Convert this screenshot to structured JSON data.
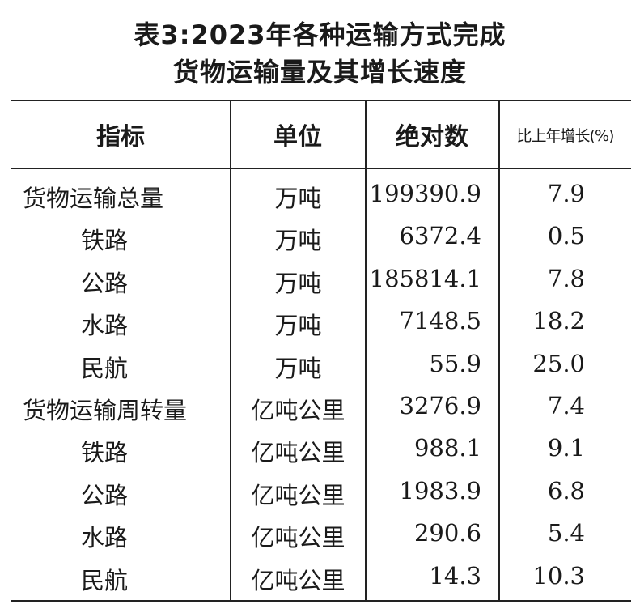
{
  "title": {
    "line1": "表3:2023年各种运输方式完成",
    "line2": "货物运输量及其增长速度"
  },
  "headers": [
    "指标",
    "单位",
    "绝对数",
    "比上年增长(%)"
  ],
  "rows": [
    {
      "indicator": "货物运输总量",
      "unit": "万吨",
      "absolute": "199390.9",
      "growth": "7.9",
      "level": 0
    },
    {
      "indicator": "铁路",
      "unit": "万吨",
      "absolute": "6372.4",
      "growth": "0.5",
      "level": 1
    },
    {
      "indicator": "公路",
      "unit": "万吨",
      "absolute": "185814.1",
      "growth": "7.8",
      "level": 1
    },
    {
      "indicator": "水路",
      "unit": "万吨",
      "absolute": "7148.5",
      "growth": "18.2",
      "level": 1
    },
    {
      "indicator": "民航",
      "unit": "万吨",
      "absolute": "55.9",
      "growth": "25.0",
      "level": 1
    },
    {
      "indicator": "货物运输周转量",
      "unit": "亿吨公里",
      "absolute": "3276.9",
      "growth": "7.4",
      "level": 0
    },
    {
      "indicator": "铁路",
      "unit": "亿吨公里",
      "absolute": "988.1",
      "growth": "9.1",
      "level": 1
    },
    {
      "indicator": "公路",
      "unit": "亿吨公里",
      "absolute": "1983.9",
      "growth": "6.8",
      "level": 1
    },
    {
      "indicator": "水路",
      "unit": "亿吨公里",
      "absolute": "290.6",
      "growth": "5.4",
      "level": 1
    },
    {
      "indicator": "民航",
      "unit": "亿吨公里",
      "absolute": "14.3",
      "growth": "10.3",
      "level": 1
    }
  ]
}
